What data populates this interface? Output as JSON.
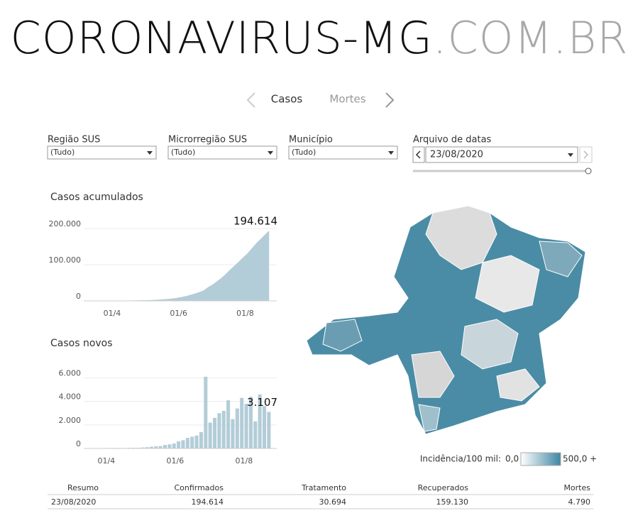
{
  "header": {
    "title_main": "CORONAVIRUS-MG",
    "title_suffix": ".COM.BR"
  },
  "nav": {
    "items": [
      "Casos",
      "Mortes"
    ]
  },
  "filters": [
    {
      "label": "Região SUS",
      "value": "(Tudo)"
    },
    {
      "label": "Microrregião SUS",
      "value": "(Tudo)"
    },
    {
      "label": "Município",
      "value": "(Tudo)"
    },
    {
      "label": "Arquivo de datas",
      "value": "23/08/2020"
    }
  ],
  "chart_data": [
    {
      "type": "area",
      "title": "Casos acumulados",
      "color": "#b3cdd8",
      "grid": true,
      "x": [
        "16/3",
        "20/3",
        "24/3",
        "28/3",
        "01/4",
        "05/4",
        "09/4",
        "13/4",
        "17/4",
        "21/4",
        "25/4",
        "29/4",
        "03/5",
        "07/5",
        "11/5",
        "15/5",
        "19/5",
        "23/5",
        "27/5",
        "31/5",
        "04/6",
        "08/6",
        "12/6",
        "16/6",
        "20/6",
        "24/6",
        "28/6",
        "02/7",
        "06/7",
        "10/7",
        "14/7",
        "18/7",
        "22/7",
        "26/7",
        "30/7",
        "03/8",
        "07/8",
        "11/8",
        "15/8",
        "19/8",
        "23/8"
      ],
      "values": [
        5,
        40,
        130,
        260,
        370,
        520,
        700,
        870,
        1000,
        1200,
        1400,
        1600,
        1900,
        2300,
        2900,
        3600,
        4400,
        5600,
        6900,
        8600,
        10800,
        13500,
        16900,
        20300,
        24500,
        29000,
        38000,
        45000,
        54000,
        63000,
        74000,
        86000,
        97000,
        108000,
        120000,
        131000,
        145000,
        159000,
        171000,
        183000,
        194614
      ],
      "value_labels": [
        null,
        null,
        null,
        null,
        null,
        null,
        null,
        null,
        null,
        null,
        null,
        null,
        null,
        null,
        null,
        null,
        null,
        null,
        null,
        null,
        null,
        null,
        null,
        null,
        null,
        null,
        null,
        null,
        null,
        null,
        null,
        null,
        null,
        null,
        null,
        null,
        null,
        null,
        null,
        null,
        "194.614"
      ],
      "xlim": [
        "06/3",
        "30/8"
      ],
      "xticks": [
        "01/4",
        "01/6",
        "01/8"
      ],
      "ylim": [
        0,
        220000
      ],
      "yticks": [
        0,
        {
          "value": 100000,
          "label": "100.000"
        },
        {
          "value": 200000,
          "label": "200.000"
        }
      ]
    },
    {
      "type": "bar",
      "title": "Casos novos",
      "color": "#b3cdd8",
      "grid": true,
      "x": [
        "16/3",
        "20/3",
        "24/3",
        "28/3",
        "01/4",
        "05/4",
        "09/4",
        "13/4",
        "17/4",
        "21/4",
        "25/4",
        "29/4",
        "03/5",
        "07/5",
        "11/5",
        "15/5",
        "19/5",
        "23/5",
        "27/5",
        "31/5",
        "04/6",
        "08/6",
        "12/6",
        "16/6",
        "20/6",
        "24/6",
        "28/6",
        "02/7",
        "06/7",
        "10/7",
        "14/7",
        "18/7",
        "22/7",
        "26/7",
        "30/7",
        "03/8",
        "07/8",
        "11/8",
        "15/8",
        "19/8",
        "23/8"
      ],
      "values": [
        3,
        15,
        25,
        30,
        35,
        40,
        45,
        40,
        35,
        50,
        60,
        55,
        80,
        110,
        150,
        190,
        200,
        300,
        350,
        420,
        600,
        700,
        900,
        1000,
        1100,
        1400,
        6100,
        2200,
        2600,
        3000,
        3200,
        4100,
        2500,
        3400,
        4300,
        3800,
        4400,
        2300,
        4600,
        3600,
        3107
      ],
      "value_labels": [
        null,
        null,
        null,
        null,
        null,
        null,
        null,
        null,
        null,
        null,
        null,
        null,
        null,
        null,
        null,
        null,
        null,
        null,
        null,
        null,
        null,
        null,
        null,
        null,
        null,
        null,
        null,
        null,
        null,
        null,
        null,
        null,
        null,
        null,
        null,
        null,
        null,
        null,
        null,
        null,
        "3.107"
      ],
      "xlim": [
        "12/3",
        "30/8"
      ],
      "xticks": [
        "01/4",
        "01/6",
        "01/8"
      ],
      "ylim": [
        0,
        7000
      ],
      "yticks": [
        0,
        {
          "value": 2000,
          "label": "2.000"
        },
        {
          "value": 4000,
          "label": "4.000"
        },
        {
          "value": 6000,
          "label": "6.000"
        }
      ]
    }
  ],
  "map_legend": {
    "title": "Incidência/100 mil:",
    "min_label": "0,0",
    "max_label": "500,0 +"
  },
  "table": {
    "header": [
      "Resumo",
      "Confirmados",
      "Tratamento",
      "Recuperados",
      "Mortes"
    ],
    "rows": [
      [
        "23/08/2020",
        "194.614",
        "30.694",
        "159.130",
        "4.790"
      ]
    ]
  }
}
